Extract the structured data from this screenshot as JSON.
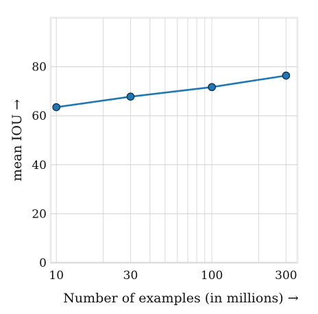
{
  "chart_data": {
    "type": "line",
    "xscale": "log",
    "x": [
      10,
      30,
      100,
      300
    ],
    "series": [
      {
        "values": [
          63.5,
          67.8,
          71.7,
          76.4
        ],
        "color": "#1f77b4"
      }
    ],
    "xlabel": "Number of examples (in millions)  →",
    "ylabel": "mean IOU  →",
    "xlim": [
      9.2,
      355
    ],
    "ylim": [
      0,
      100
    ],
    "xticks": [
      10,
      30,
      100,
      300
    ],
    "xtick_labels": [
      "10",
      "30",
      "100",
      "300"
    ],
    "yticks": [
      0,
      20,
      40,
      60,
      80
    ],
    "ytick_labels": [
      "0",
      "20",
      "40",
      "60",
      "80"
    ],
    "grid": true,
    "minor_grid": true,
    "marker": "circle"
  }
}
